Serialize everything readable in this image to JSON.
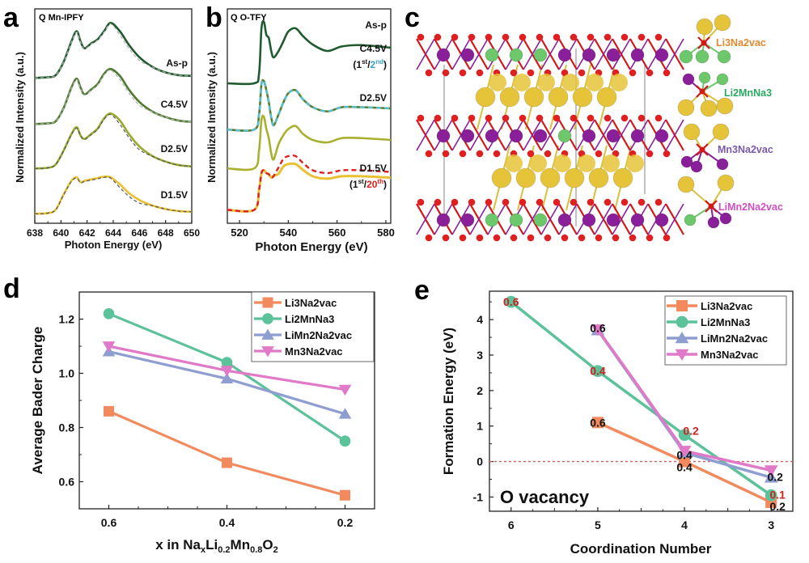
{
  "figure": {
    "panel_letters": [
      "a",
      "b",
      "c",
      "d",
      "e"
    ]
  },
  "chart_data": [
    {
      "id": "a",
      "type": "line",
      "title": "Q Mn-IPFY",
      "xlabel": "Photon Energy (eV)",
      "ylabel": "Normalized Intensity (a.u.)",
      "xlim": [
        638,
        650
      ],
      "xticks": [
        638,
        640,
        642,
        644,
        646,
        648,
        650
      ],
      "xtick_labels": [
        "638",
        "640",
        "642",
        "644",
        "646",
        "648",
        "650"
      ],
      "yticks_shown": false,
      "stacked_offset": true,
      "series": [
        {
          "name": "As-p",
          "color": "#1f5b2e",
          "reference_dashed_color": "#b0b0b0",
          "x": [
            638,
            639,
            639.6,
            640.2,
            640.8,
            641.2,
            641.5,
            641.8,
            642.3,
            642.8,
            643.3,
            643.8,
            644.5,
            645.2,
            646,
            647,
            648,
            649,
            650
          ],
          "y": [
            0.02,
            0.03,
            0.06,
            0.25,
            0.55,
            0.7,
            0.55,
            0.45,
            0.52,
            0.58,
            0.7,
            0.82,
            0.7,
            0.5,
            0.32,
            0.18,
            0.1,
            0.06,
            0.05
          ]
        },
        {
          "name": "C4.5V",
          "color": "#4d7a2e",
          "reference_dashed_color": "#b0b0b0",
          "x": [
            638,
            639,
            639.6,
            640.2,
            640.8,
            641.2,
            641.5,
            641.8,
            642.3,
            642.8,
            643.3,
            643.8,
            644.5,
            645.2,
            646,
            647,
            648,
            649,
            650
          ],
          "y": [
            0.02,
            0.03,
            0.06,
            0.25,
            0.55,
            0.68,
            0.55,
            0.45,
            0.52,
            0.6,
            0.75,
            0.82,
            0.72,
            0.52,
            0.34,
            0.2,
            0.12,
            0.07,
            0.05
          ]
        },
        {
          "name": "D2.5V",
          "color": "#9aaa2a",
          "reference_dashed_color": "#555566",
          "x": [
            638,
            639,
            639.6,
            640.2,
            640.8,
            641.2,
            641.5,
            641.8,
            642.3,
            642.8,
            643.3,
            643.8,
            644.5,
            645.2,
            646,
            647,
            648,
            649,
            650
          ],
          "y": [
            0.02,
            0.03,
            0.08,
            0.28,
            0.52,
            0.62,
            0.5,
            0.45,
            0.52,
            0.6,
            0.75,
            0.82,
            0.72,
            0.52,
            0.34,
            0.2,
            0.12,
            0.07,
            0.05
          ]
        },
        {
          "name": "D1.5V",
          "color": "#e8c030",
          "reference_dashed_color": "#555566",
          "x": [
            638,
            639,
            639.6,
            640.2,
            640.8,
            641.2,
            641.5,
            641.8,
            642.3,
            642.8,
            643.3,
            643.8,
            644.5,
            645.2,
            646,
            647,
            648,
            649,
            650
          ],
          "y": [
            0.02,
            0.03,
            0.08,
            0.3,
            0.5,
            0.55,
            0.48,
            0.5,
            0.52,
            0.54,
            0.56,
            0.55,
            0.45,
            0.32,
            0.22,
            0.14,
            0.09,
            0.06,
            0.05
          ]
        }
      ]
    },
    {
      "id": "b",
      "type": "line",
      "title": "Q O-TFY",
      "xlabel": "Photon Energy (eV)",
      "ylabel": "Normalized Intensity (a.u.)",
      "xlim": [
        515,
        582
      ],
      "xticks": [
        520,
        540,
        560,
        580
      ],
      "xtick_labels": [
        "520",
        "540",
        "560",
        "580"
      ],
      "yticks_shown": false,
      "stacked_offset": true,
      "series": [
        {
          "name": "As-p",
          "label": "As-p",
          "color": "#1f5b2e",
          "x": [
            515,
            526,
            528,
            529,
            530,
            531,
            532,
            533,
            534,
            536,
            538,
            540,
            543,
            546,
            550,
            556,
            562,
            570,
            582
          ],
          "y": [
            0.05,
            0.05,
            0.2,
            0.9,
            1.0,
            0.8,
            0.75,
            0.55,
            0.45,
            0.55,
            0.7,
            0.85,
            0.9,
            0.78,
            0.65,
            0.55,
            0.62,
            0.64,
            0.6
          ]
        },
        {
          "name": "C4.5V",
          "label": "C4.5V",
          "sublabel_prefix": "(1",
          "sup1": "st",
          "sep": "/",
          "second": "2",
          "sup2": "nd",
          "suffix": ")",
          "color": "#5e7a2a",
          "overlay_dashed_color": "#4fc3d9",
          "x": [
            515,
            526,
            528,
            529,
            530,
            531,
            532,
            533,
            534,
            536,
            538,
            540,
            543,
            546,
            550,
            556,
            562,
            570,
            582
          ],
          "y": [
            0.05,
            0.05,
            0.3,
            0.8,
            0.85,
            0.7,
            0.5,
            0.25,
            0.12,
            0.3,
            0.5,
            0.65,
            0.7,
            0.55,
            0.42,
            0.35,
            0.42,
            0.42,
            0.4
          ]
        },
        {
          "name": "D2.5V",
          "label": "D2.5V",
          "color": "#a8b030",
          "x": [
            515,
            526,
            528,
            529,
            530,
            531,
            532,
            533,
            534,
            536,
            538,
            540,
            543,
            546,
            550,
            556,
            562,
            570,
            582
          ],
          "y": [
            0.05,
            0.05,
            0.35,
            0.85,
            0.9,
            0.7,
            0.55,
            0.3,
            0.2,
            0.45,
            0.6,
            0.7,
            0.75,
            0.62,
            0.52,
            0.48,
            0.55,
            0.55,
            0.52
          ]
        },
        {
          "name": "D1.5V",
          "label": "D1.5V",
          "sublabel_prefix": "(1",
          "sup1": "st",
          "sep": "/",
          "second": "20",
          "sup2": "th",
          "suffix": ")",
          "color": "#e8c030",
          "overlay_dashed_color": "#e02020",
          "x": [
            515,
            526,
            528,
            529,
            530,
            531,
            532,
            533,
            534,
            536,
            538,
            540,
            543,
            546,
            550,
            556,
            562,
            570,
            582
          ],
          "y": [
            0.05,
            0.05,
            0.4,
            0.7,
            0.75,
            0.7,
            0.68,
            0.62,
            0.65,
            0.8,
            0.95,
            1.0,
            1.0,
            0.88,
            0.75,
            0.7,
            0.75,
            0.75,
            0.72
          ]
        }
      ]
    },
    {
      "id": "d",
      "type": "line",
      "title": "",
      "xlabel_main": "x in Na",
      "xlabel_parts": [
        {
          "text": "x in Na",
          "sub": "x"
        },
        {
          "text": "Li",
          "sub": "0.2"
        },
        {
          "text": "Mn",
          "sub": "0.8"
        },
        {
          "text": "O",
          "sub": "2"
        }
      ],
      "ylabel": "Average Bader Charge",
      "xlim": [
        0.65,
        0.15
      ],
      "ylim": [
        0.5,
        1.3
      ],
      "x": [
        0.6,
        0.4,
        0.2
      ],
      "xtick_labels": [
        "0.6",
        "0.4",
        "0.2"
      ],
      "yticks": [
        0.6,
        0.8,
        1.0,
        1.2
      ],
      "ytick_labels": [
        "0.6",
        "0.8",
        "1.0",
        "1.2"
      ],
      "legend": "top-right",
      "series": [
        {
          "name": "Li3Na2vac",
          "marker": "square",
          "color": "#f28a5e",
          "values": [
            0.86,
            0.67,
            0.55
          ]
        },
        {
          "name": "Li2MnNa3",
          "marker": "circle",
          "color": "#5cc29a",
          "values": [
            1.22,
            1.04,
            0.75
          ]
        },
        {
          "name": "LiMn2Na2vac",
          "marker": "triangle-up",
          "color": "#8f9ed0",
          "values": [
            1.08,
            0.98,
            0.85
          ]
        },
        {
          "name": "Mn3Na2vac",
          "marker": "triangle-down",
          "color": "#e07ac8",
          "values": [
            1.1,
            1.01,
            0.94
          ]
        }
      ]
    },
    {
      "id": "e",
      "type": "line",
      "title": "",
      "annotation": "O vacancy",
      "xlabel": "Coordination Number",
      "ylabel": "Formation Energy (eV)",
      "xlim": [
        6.25,
        2.75
      ],
      "ylim": [
        -1.4,
        4.8
      ],
      "xticks": [
        6,
        5,
        4,
        3
      ],
      "xtick_labels": [
        "6",
        "5",
        "4",
        "3"
      ],
      "yticks": [
        -1,
        0,
        1,
        2,
        3,
        4
      ],
      "ytick_labels": [
        "-1",
        "0",
        "1",
        "2",
        "3",
        "4"
      ],
      "reference_line": {
        "y": 0,
        "style": "dashed",
        "color": "#d06060"
      },
      "legend": "top-right",
      "series": [
        {
          "name": "Li3Na2vac",
          "marker": "square",
          "color": "#f28a5e",
          "x": [
            5,
            4,
            3
          ],
          "values": [
            1.1,
            0.0,
            -1.15
          ],
          "point_labels": [
            "0.6",
            "0.4",
            "0.2"
          ],
          "label_color": "#111111"
        },
        {
          "name": "Li2MnNa3",
          "marker": "circle",
          "color": "#5cc29a",
          "x": [
            6,
            5,
            4,
            3
          ],
          "values": [
            4.5,
            2.55,
            0.75,
            -0.95
          ],
          "point_labels": [
            "0.6",
            "0.4",
            "0.2",
            "0.1"
          ],
          "label_color": "#d02020"
        },
        {
          "name": "LiMn2Na2vac",
          "marker": "triangle-up",
          "color": "#8f9ed0",
          "x": [
            5,
            4,
            3
          ],
          "values": [
            3.7,
            0.25,
            -0.45
          ],
          "point_labels": [],
          "label_color": "#111111"
        },
        {
          "name": "Mn3Na2vac",
          "marker": "triangle-down",
          "color": "#e07ac8",
          "x": [
            5,
            4,
            3
          ],
          "values": [
            3.72,
            0.3,
            -0.25
          ],
          "point_labels": [
            "0.6",
            "0.4",
            "0.2"
          ],
          "label_color": "#111111"
        }
      ]
    }
  ],
  "structure_panel": {
    "id": "c",
    "atom_colors": {
      "O": "#e02020",
      "Mn": "#8a1f9a",
      "Li": "#6cc86a",
      "Na": "#e6c43a"
    },
    "motif_labels": [
      {
        "text": "Li3Na2vac",
        "color": "#e08a30"
      },
      {
        "text": "Li2MnNa3",
        "color": "#2aa860"
      },
      {
        "text": "Mn3Na2vac",
        "color": "#7a5aa8"
      },
      {
        "text": "LiMn2Na2vac",
        "color": "#d050c0"
      }
    ]
  }
}
